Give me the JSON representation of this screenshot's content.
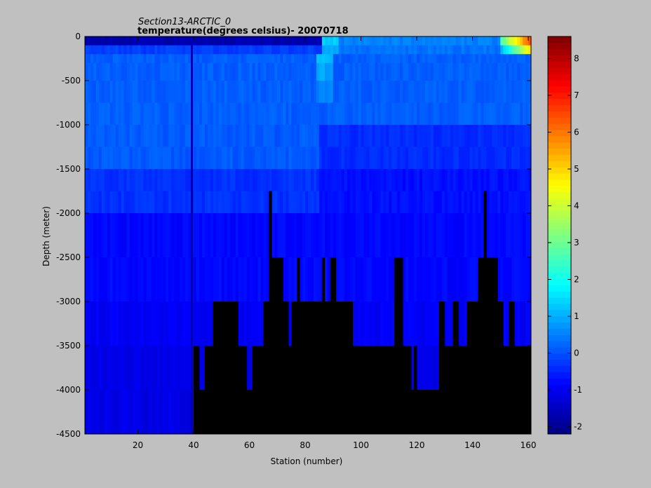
{
  "chart_data": {
    "type": "heatmap",
    "title": "Section13-ARCTIC_0",
    "subtitle": "temperature(degrees  celsius)- 20070718",
    "xlabel": "Station (number)",
    "ylabel": "Depth (meter)",
    "xlim": [
      1,
      161
    ],
    "ylim": [
      -4500,
      0
    ],
    "xticks": [
      20,
      40,
      60,
      80,
      100,
      120,
      140,
      160
    ],
    "yticks": [
      0,
      -500,
      -1000,
      -1500,
      -2000,
      -2500,
      -3000,
      -3500,
      -4000,
      -4500
    ],
    "colorbar": {
      "range": [
        -2.2,
        8.6
      ],
      "ticks": [
        -2,
        -1,
        0,
        1,
        2,
        3,
        4,
        5,
        6,
        7,
        8
      ]
    },
    "depth_levels": [
      0,
      -100,
      -200,
      -300,
      -500,
      -750,
      -1000,
      -1250,
      -1500,
      -1750,
      -2000,
      -2500,
      -3000,
      -3500,
      -4000,
      -4500
    ],
    "seafloor_profile": [
      {
        "from": 1,
        "to": 40,
        "depth": -4500
      },
      {
        "from": 40,
        "to": 42,
        "depth": -3500
      },
      {
        "from": 42,
        "to": 44,
        "depth": -4000
      },
      {
        "from": 44,
        "to": 47,
        "depth": -3500
      },
      {
        "from": 47,
        "to": 56,
        "depth": -3000
      },
      {
        "from": 56,
        "to": 59,
        "depth": -3500
      },
      {
        "from": 59,
        "to": 61,
        "depth": -4000
      },
      {
        "from": 61,
        "to": 65,
        "depth": -3500
      },
      {
        "from": 65,
        "to": 67,
        "depth": -3000
      },
      {
        "from": 67,
        "to": 68,
        "depth": -1750
      },
      {
        "from": 68,
        "to": 72,
        "depth": -2500
      },
      {
        "from": 72,
        "to": 74,
        "depth": -3000
      },
      {
        "from": 74,
        "to": 75,
        "depth": -3500
      },
      {
        "from": 75,
        "to": 77,
        "depth": -3000
      },
      {
        "from": 77,
        "to": 78,
        "depth": -2500
      },
      {
        "from": 78,
        "to": 86,
        "depth": -3000
      },
      {
        "from": 86,
        "to": 87,
        "depth": -2500
      },
      {
        "from": 87,
        "to": 89,
        "depth": -3000
      },
      {
        "from": 89,
        "to": 91,
        "depth": -2500
      },
      {
        "from": 91,
        "to": 97,
        "depth": -3000
      },
      {
        "from": 97,
        "to": 112,
        "depth": -3500
      },
      {
        "from": 112,
        "to": 115,
        "depth": -2500
      },
      {
        "from": 115,
        "to": 118,
        "depth": -3500
      },
      {
        "from": 118,
        "to": 119,
        "depth": -4000
      },
      {
        "from": 119,
        "to": 120,
        "depth": -3500
      },
      {
        "from": 120,
        "to": 128,
        "depth": -4000
      },
      {
        "from": 128,
        "to": 130,
        "depth": -3000
      },
      {
        "from": 130,
        "to": 133,
        "depth": -3500
      },
      {
        "from": 133,
        "to": 135,
        "depth": -3000
      },
      {
        "from": 135,
        "to": 138,
        "depth": -3500
      },
      {
        "from": 138,
        "to": 140,
        "depth": -3000
      },
      {
        "from": 140,
        "to": 142,
        "depth": -3000
      },
      {
        "from": 142,
        "to": 144,
        "depth": -2500
      },
      {
        "from": 144,
        "to": 145,
        "depth": -1750
      },
      {
        "from": 145,
        "to": 149,
        "depth": -2500
      },
      {
        "from": 149,
        "to": 151,
        "depth": -3000
      },
      {
        "from": 151,
        "to": 153,
        "depth": -3500
      },
      {
        "from": 153,
        "to": 155,
        "depth": -3000
      },
      {
        "from": 155,
        "to": 161,
        "depth": -3500
      }
    ]
  }
}
